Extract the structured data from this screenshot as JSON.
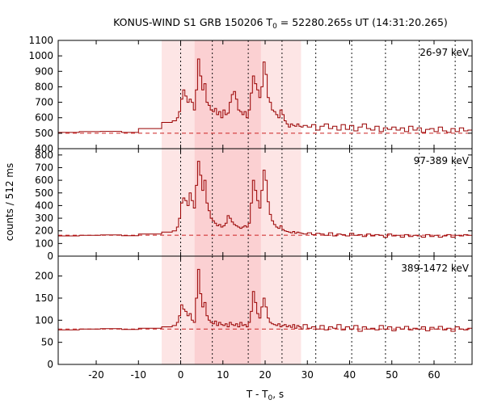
{
  "title_parts": {
    "prefix": "KONUS-WIND S1 GRB 150206 T",
    "subscript": "0",
    "suffix": " = 52280.265s UT (14:31:20.265)"
  },
  "ylabel": "counts / 512 ms",
  "xlabel_parts": {
    "prefix": "T - T",
    "subscript": "0",
    "suffix": ", s"
  },
  "chart_data": {
    "type": "line",
    "style": "histogram-step",
    "grid": false,
    "legend": "none",
    "xlim": [
      -29,
      69
    ],
    "x_ticks": [
      -20,
      -10,
      0,
      10,
      20,
      30,
      40,
      50,
      60
    ],
    "time_intervals_s": [
      0,
      7.5,
      16,
      24,
      32,
      40.5,
      48.5,
      56.5,
      65
    ],
    "shaded_regions": [
      {
        "x0": -4.5,
        "x1": 28.5,
        "shade": "light"
      },
      {
        "x0": 3.3,
        "x1": 19,
        "shade": "medium"
      }
    ],
    "panels": [
      {
        "band_label": "26-97 keV",
        "ylim": [
          400,
          1100
        ],
        "y_ticks": [
          400,
          500,
          600,
          700,
          800,
          900,
          1000,
          1100
        ],
        "background": 500,
        "x": [
          -29,
          -24,
          -19,
          -14,
          -10,
          -4.5,
          -2,
          -1,
          -0.5,
          0,
          0.5,
          1,
          1.5,
          2,
          2.5,
          3,
          3.5,
          4,
          4.5,
          5,
          5.5,
          6,
          6.5,
          7,
          7.5,
          8,
          8.5,
          9,
          9.5,
          10,
          10.5,
          11,
          11.5,
          12,
          12.5,
          13,
          13.5,
          14,
          14.5,
          15,
          15.5,
          16,
          16.5,
          17,
          17.5,
          18,
          18.5,
          19,
          19.5,
          20,
          20.5,
          21,
          21.5,
          22,
          22.5,
          23,
          23.5,
          24,
          24.5,
          25,
          25.5,
          26,
          26.5,
          27,
          27.5,
          28,
          28.5,
          29,
          30,
          31,
          32,
          33,
          34,
          35,
          36,
          37,
          38,
          39,
          40,
          41,
          42,
          43,
          44,
          45,
          46,
          47,
          48,
          49,
          50,
          51,
          52,
          53,
          54,
          55,
          56,
          57,
          58,
          59,
          60,
          61,
          62,
          63,
          64,
          65,
          66,
          67,
          68
        ],
        "y": [
          505,
          510,
          512,
          505,
          530,
          570,
          580,
          600,
          640,
          720,
          780,
          740,
          700,
          720,
          700,
          650,
          780,
          980,
          870,
          780,
          820,
          700,
          680,
          650,
          640,
          660,
          620,
          640,
          600,
          650,
          620,
          630,
          700,
          750,
          770,
          720,
          650,
          640,
          620,
          640,
          600,
          650,
          760,
          870,
          820,
          780,
          730,
          800,
          960,
          880,
          730,
          700,
          650,
          640,
          620,
          600,
          650,
          620,
          580,
          560,
          540,
          560,
          550,
          545,
          560,
          545,
          540,
          550,
          540,
          555,
          520,
          545,
          560,
          530,
          545,
          520,
          555,
          525,
          550,
          515,
          540,
          560,
          530,
          520,
          545,
          510,
          535,
          525,
          540,
          520,
          535,
          510,
          545,
          520,
          535,
          505,
          525,
          530,
          510,
          540,
          515,
          505,
          530,
          510,
          535,
          515,
          520
        ]
      },
      {
        "band_label": "97-389 keV",
        "ylim": [
          0,
          850
        ],
        "y_ticks": [
          0,
          100,
          200,
          300,
          400,
          500,
          600,
          700,
          800
        ],
        "background": 165,
        "x": [
          -29,
          -24,
          -19,
          -14,
          -10,
          -4.5,
          -2,
          -1,
          -0.5,
          0,
          0.5,
          1,
          1.5,
          2,
          2.5,
          3,
          3.5,
          4,
          4.5,
          5,
          5.5,
          6,
          6.5,
          7,
          7.5,
          8,
          8.5,
          9,
          9.5,
          10,
          10.5,
          11,
          11.5,
          12,
          12.5,
          13,
          13.5,
          14,
          14.5,
          15,
          15.5,
          16,
          16.5,
          17,
          17.5,
          18,
          18.5,
          19,
          19.5,
          20,
          20.5,
          21,
          21.5,
          22,
          22.5,
          23,
          23.5,
          24,
          24.5,
          25,
          25.5,
          26,
          26.5,
          27,
          27.5,
          28,
          28.5,
          29,
          30,
          31,
          32,
          33,
          34,
          35,
          36,
          37,
          38,
          39,
          40,
          41,
          42,
          43,
          44,
          45,
          46,
          47,
          48,
          49,
          50,
          51,
          52,
          53,
          54,
          55,
          56,
          57,
          58,
          59,
          60,
          61,
          62,
          63,
          64,
          65,
          66,
          67,
          68
        ],
        "y": [
          160,
          165,
          168,
          162,
          175,
          190,
          200,
          230,
          300,
          420,
          460,
          440,
          400,
          500,
          440,
          380,
          560,
          750,
          640,
          520,
          600,
          420,
          360,
          300,
          280,
          260,
          240,
          250,
          230,
          240,
          260,
          320,
          300,
          270,
          250,
          240,
          230,
          220,
          230,
          240,
          230,
          260,
          420,
          600,
          520,
          440,
          380,
          520,
          680,
          600,
          430,
          330,
          280,
          250,
          230,
          220,
          240,
          210,
          200,
          195,
          190,
          185,
          195,
          180,
          190,
          185,
          180,
          175,
          185,
          170,
          180,
          175,
          165,
          185,
          160,
          175,
          170,
          160,
          180,
          165,
          170,
          155,
          175,
          160,
          170,
          165,
          150,
          175,
          160,
          165,
          150,
          170,
          155,
          165,
          160,
          150,
          170,
          155,
          165,
          150,
          160,
          170,
          150,
          165,
          160,
          170,
          165
        ]
      },
      {
        "band_label": "389-1472 keV",
        "ylim": [
          0,
          245
        ],
        "y_ticks": [
          0,
          50,
          100,
          150,
          200
        ],
        "background": 80,
        "x": [
          -29,
          -24,
          -19,
          -14,
          -10,
          -4.5,
          -2,
          -1,
          -0.5,
          0,
          0.5,
          1,
          1.5,
          2,
          2.5,
          3,
          3.5,
          4,
          4.5,
          5,
          5.5,
          6,
          6.5,
          7,
          7.5,
          8,
          8.5,
          9,
          9.5,
          10,
          10.5,
          11,
          11.5,
          12,
          12.5,
          13,
          13.5,
          14,
          14.5,
          15,
          15.5,
          16,
          16.5,
          17,
          17.5,
          18,
          18.5,
          19,
          19.5,
          20,
          20.5,
          21,
          21.5,
          22,
          22.5,
          23,
          23.5,
          24,
          24.5,
          25,
          25.5,
          26,
          26.5,
          27,
          27.5,
          28,
          28.5,
          29,
          30,
          31,
          32,
          33,
          34,
          35,
          36,
          37,
          38,
          39,
          40,
          41,
          42,
          43,
          44,
          45,
          46,
          47,
          48,
          49,
          50,
          51,
          52,
          53,
          54,
          55,
          56,
          57,
          58,
          59,
          60,
          61,
          62,
          63,
          64,
          65,
          66,
          67,
          68
        ],
        "y": [
          78,
          80,
          81,
          79,
          82,
          85,
          88,
          95,
          110,
          135,
          125,
          120,
          110,
          115,
          100,
          95,
          150,
          215,
          160,
          130,
          140,
          110,
          100,
          95,
          92,
          98,
          88,
          95,
          90,
          88,
          92,
          85,
          95,
          90,
          88,
          92,
          85,
          95,
          88,
          90,
          85,
          95,
          120,
          165,
          140,
          115,
          105,
          130,
          150,
          130,
          105,
          95,
          92,
          90,
          88,
          92,
          85,
          88,
          90,
          85,
          88,
          84,
          90,
          82,
          88,
          85,
          80,
          90,
          82,
          85,
          80,
          88,
          78,
          85,
          82,
          90,
          78,
          85,
          80,
          88,
          75,
          85,
          80,
          82,
          78,
          88,
          80,
          85,
          76,
          84,
          80,
          86,
          78,
          82,
          80,
          85,
          76,
          84,
          80,
          86,
          78,
          82,
          75,
          85,
          80,
          78,
          82
        ]
      }
    ]
  }
}
